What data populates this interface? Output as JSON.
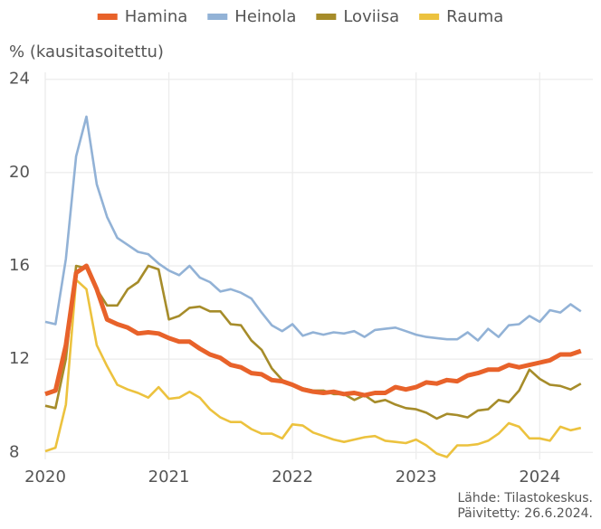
{
  "chart_data": {
    "type": "line",
    "ylabel": "% (kausitasoitettu)",
    "source": [
      "Lähde: Tilastokeskus.",
      "Päivitetty: 26.6.2024."
    ],
    "x": [
      2020,
      2020.083,
      2020.167,
      2020.25,
      2020.333,
      2020.417,
      2020.5,
      2020.583,
      2020.667,
      2020.75,
      2020.833,
      2020.917,
      2021,
      2021.083,
      2021.167,
      2021.25,
      2021.333,
      2021.417,
      2021.5,
      2021.583,
      2021.667,
      2021.75,
      2021.833,
      2021.917,
      2022,
      2022.083,
      2022.167,
      2022.25,
      2022.333,
      2022.417,
      2022.5,
      2022.583,
      2022.667,
      2022.75,
      2022.833,
      2022.917,
      2023,
      2023.083,
      2023.167,
      2023.25,
      2023.333,
      2023.417,
      2023.5,
      2023.583,
      2023.667,
      2023.75,
      2023.833,
      2023.917,
      2024,
      2024.083,
      2024.167,
      2024.25,
      2024.333
    ],
    "series": [
      {
        "name": "Hamina",
        "color": "#e8622a",
        "values": [
          10.5,
          10.65,
          12.6,
          15.7,
          16,
          15,
          13.7,
          13.5,
          13.35,
          13.1,
          13.15,
          13.1,
          12.9,
          12.75,
          12.75,
          12.45,
          12.2,
          12.05,
          11.75,
          11.65,
          11.4,
          11.35,
          11.1,
          11.05,
          10.9,
          10.7,
          10.6,
          10.55,
          10.6,
          10.5,
          10.55,
          10.45,
          10.55,
          10.55,
          10.8,
          10.7,
          10.8,
          11.0,
          10.95,
          11.1,
          11.05,
          11.3,
          11.4,
          11.55,
          11.55,
          11.75,
          11.65,
          11.75,
          11.85,
          11.95,
          12.2,
          12.2,
          12.35
        ]
      },
      {
        "name": "Heinola",
        "color": "#92b2d6",
        "values": [
          13.6,
          13.5,
          16.3,
          20.7,
          22.4,
          19.5,
          18.1,
          17.2,
          16.9,
          16.6,
          16.5,
          16.1,
          15.8,
          15.6,
          16.0,
          15.5,
          15.3,
          14.9,
          15.0,
          14.85,
          14.6,
          14.0,
          13.45,
          13.2,
          13.5,
          13.0,
          13.15,
          13.05,
          13.15,
          13.1,
          13.2,
          12.95,
          13.25,
          13.3,
          13.35,
          13.2,
          13.05,
          12.95,
          12.9,
          12.85,
          12.85,
          13.15,
          12.8,
          13.3,
          12.95,
          13.45,
          13.5,
          13.85,
          13.6,
          14.1,
          14.0,
          14.35,
          14.05
        ]
      },
      {
        "name": "Loviisa",
        "color": "#a68c2a",
        "values": [
          10.0,
          9.9,
          12.0,
          16.0,
          15.9,
          15.0,
          14.3,
          14.3,
          15.0,
          15.3,
          16.0,
          15.85,
          13.7,
          13.85,
          14.2,
          14.25,
          14.05,
          14.05,
          13.5,
          13.45,
          12.8,
          12.4,
          11.6,
          11.1,
          10.9,
          10.75,
          10.65,
          10.65,
          10.5,
          10.5,
          10.25,
          10.45,
          10.15,
          10.25,
          10.05,
          9.9,
          9.85,
          9.7,
          9.45,
          9.65,
          9.6,
          9.5,
          9.8,
          9.85,
          10.25,
          10.15,
          10.65,
          11.55,
          11.15,
          10.9,
          10.85,
          10.7,
          10.95
        ]
      },
      {
        "name": "Rauma",
        "color": "#ecc23e",
        "values": [
          8.05,
          8.2,
          10.05,
          15.4,
          15.0,
          12.6,
          11.7,
          10.9,
          10.7,
          10.55,
          10.35,
          10.8,
          10.3,
          10.35,
          10.6,
          10.35,
          9.85,
          9.5,
          9.3,
          9.3,
          9.0,
          8.8,
          8.8,
          8.6,
          9.2,
          9.15,
          8.85,
          8.7,
          8.55,
          8.45,
          8.55,
          8.65,
          8.7,
          8.5,
          8.45,
          8.4,
          8.55,
          8.3,
          7.95,
          7.8,
          8.3,
          8.3,
          8.35,
          8.5,
          8.8,
          9.25,
          9.1,
          8.6,
          8.6,
          8.5,
          9.1,
          8.95,
          9.05
        ]
      }
    ],
    "xlim": [
      2020,
      2024.43
    ],
    "xticks": [
      2020,
      2021,
      2022,
      2023,
      2024
    ],
    "ylim": [
      7.7,
      24.3
    ],
    "yticks": [
      8,
      12,
      16,
      20,
      24
    ],
    "grid": true,
    "legend": "top"
  }
}
